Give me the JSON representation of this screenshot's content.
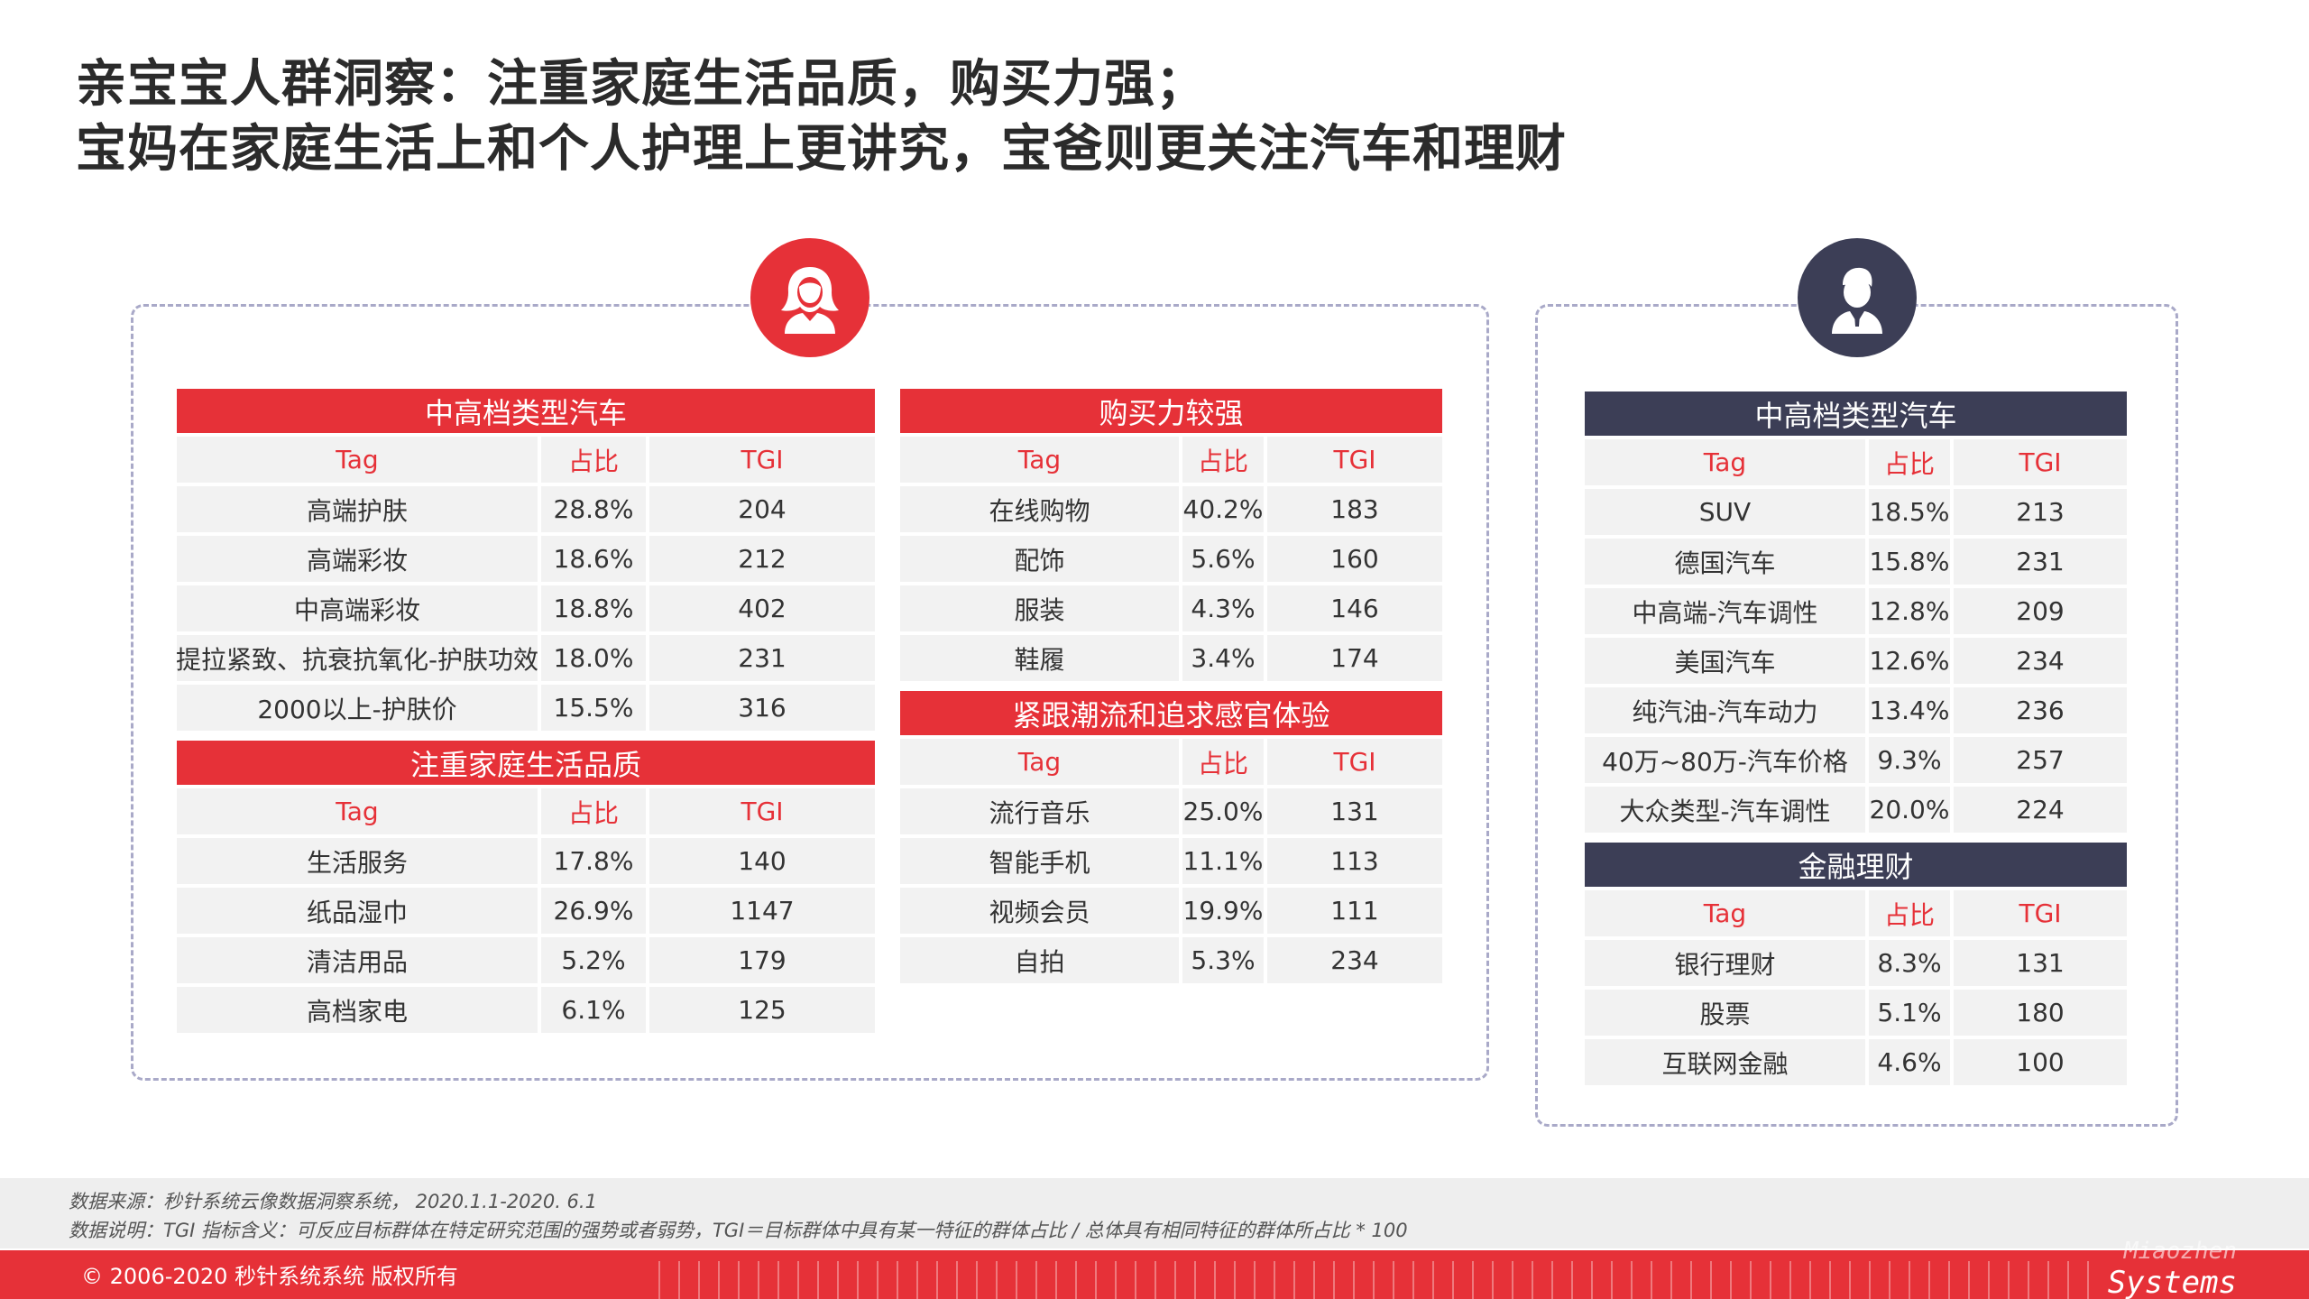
{
  "title": {
    "line1": "亲宝宝人群洞察：注重家庭生活品质，购买力强；",
    "line2": "宝妈在家庭生活上和个人护理上更讲究，宝爸则更关注汽车和理财"
  },
  "icons": {
    "female": "woman-avatar-icon",
    "male": "man-avatar-icon"
  },
  "colors": {
    "accent_red": "#e63138",
    "accent_navy": "#3c3e56",
    "cell_bg": "#f2f2f2"
  },
  "columns": {
    "tag": "Tag",
    "share": "占比",
    "tgi": "TGI"
  },
  "female": {
    "tables": [
      {
        "title": "中高档类型汽车",
        "rows": [
          {
            "tag": "高端护肤",
            "share": "28.8%",
            "tgi": "204"
          },
          {
            "tag": "高端彩妆",
            "share": "18.6%",
            "tgi": "212"
          },
          {
            "tag": "中高端彩妆",
            "share": "18.8%",
            "tgi": "402"
          },
          {
            "tag": "提拉紧致、抗衰抗氧化-护肤功效",
            "share": "18.0%",
            "tgi": "231"
          },
          {
            "tag": "2000以上-护肤价",
            "share": "15.5%",
            "tgi": "316"
          }
        ]
      },
      {
        "title": "注重家庭生活品质",
        "rows": [
          {
            "tag": "生活服务",
            "share": "17.8%",
            "tgi": "140"
          },
          {
            "tag": "纸品湿巾",
            "share": "26.9%",
            "tgi": "1147"
          },
          {
            "tag": "清洁用品",
            "share": "5.2%",
            "tgi": "179"
          },
          {
            "tag": "高档家电",
            "share": "6.1%",
            "tgi": "125"
          }
        ]
      },
      {
        "title": "购买力较强",
        "rows": [
          {
            "tag": "在线购物",
            "share": "40.2%",
            "tgi": "183"
          },
          {
            "tag": "配饰",
            "share": "5.6%",
            "tgi": "160"
          },
          {
            "tag": "服装",
            "share": "4.3%",
            "tgi": "146"
          },
          {
            "tag": "鞋履",
            "share": "3.4%",
            "tgi": "174"
          }
        ]
      },
      {
        "title": "紧跟潮流和追求感官体验",
        "rows": [
          {
            "tag": "流行音乐",
            "share": "25.0%",
            "tgi": "131"
          },
          {
            "tag": "智能手机",
            "share": "11.1%",
            "tgi": "113"
          },
          {
            "tag": "视频会员",
            "share": "19.9%",
            "tgi": "111"
          },
          {
            "tag": "自拍",
            "share": "5.3%",
            "tgi": "234"
          }
        ]
      }
    ]
  },
  "male": {
    "tables": [
      {
        "title": "中高档类型汽车",
        "rows": [
          {
            "tag": "SUV",
            "share": "18.5%",
            "tgi": "213"
          },
          {
            "tag": "德国汽车",
            "share": "15.8%",
            "tgi": "231"
          },
          {
            "tag": "中高端-汽车调性",
            "share": "12.8%",
            "tgi": "209"
          },
          {
            "tag": "美国汽车",
            "share": "12.6%",
            "tgi": "234"
          },
          {
            "tag": "纯汽油-汽车动力",
            "share": "13.4%",
            "tgi": "236"
          },
          {
            "tag": "40万~80万-汽车价格",
            "share": "9.3%",
            "tgi": "257"
          },
          {
            "tag": "大众类型-汽车调性",
            "share": "20.0%",
            "tgi": "224"
          }
        ]
      },
      {
        "title": "金融理财",
        "rows": [
          {
            "tag": "银行理财",
            "share": "8.3%",
            "tgi": "131"
          },
          {
            "tag": "股票",
            "share": "5.1%",
            "tgi": "180"
          },
          {
            "tag": "互联网金融",
            "share": "4.6%",
            "tgi": "100"
          }
        ]
      }
    ]
  },
  "footer": {
    "source": "数据来源：秒针系统云像数据洞察系统， 2020.1.1-2020. 6.1",
    "note": "数据说明：TGI 指标含义：可反应目标群体在特定研究范围的强势或者弱势，TGI＝目标群体中具有某一特征的群体占比 / 总体具有相同特征的群体所占比 * 100",
    "copyright": "© 2006-2020 秒针系统系统 版权所有",
    "logo_line1": "Miaozhen",
    "logo_line2": "Systems"
  }
}
